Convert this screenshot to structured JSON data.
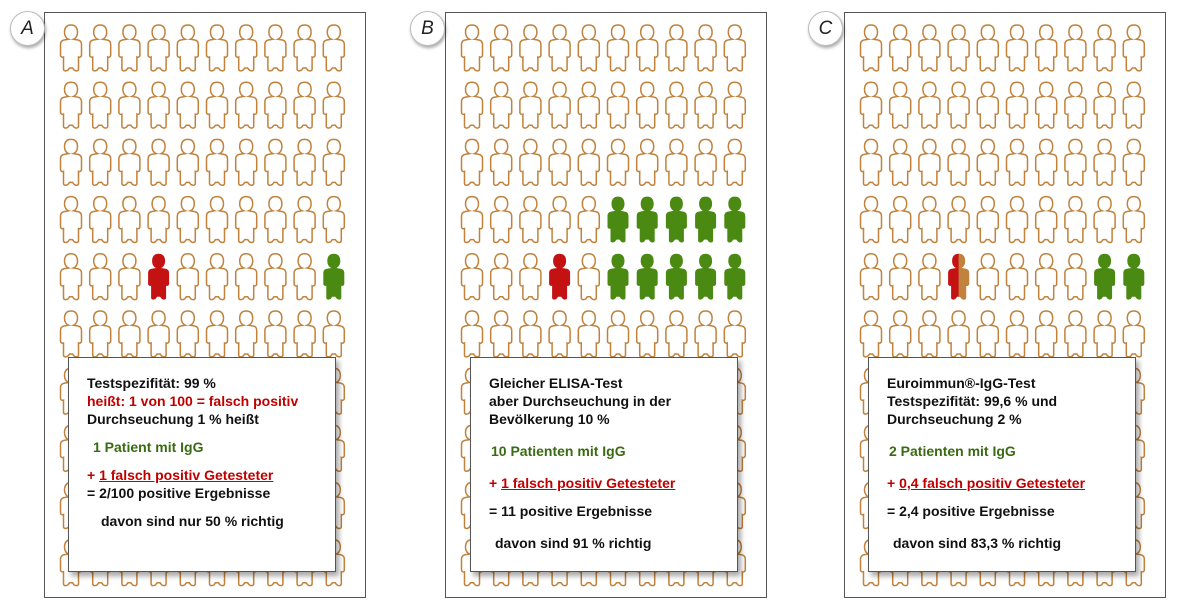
{
  "panels": [
    {
      "label": "A",
      "lines": [
        {
          "segments": [
            {
              "text": "Testspezifität: 99 %",
              "cls": ""
            }
          ],
          "cls": ""
        },
        {
          "segments": [
            {
              "text": "heißt: 1 von 100 = falsch positiv",
              "cls": "red"
            }
          ],
          "cls": ""
        },
        {
          "segments": [
            {
              "text": "Durchseuchung 1 % heißt",
              "cls": ""
            }
          ],
          "cls": ""
        },
        {
          "segments": [
            {
              "text": "1 Patient mit IgG",
              "cls": "green"
            }
          ],
          "cls": "gap",
          "indent": 6
        },
        {
          "segments": [
            {
              "text": "+ ",
              "cls": "red"
            },
            {
              "text": "1 falsch positiv Getesteter",
              "cls": "red ul"
            }
          ],
          "cls": "gap"
        },
        {
          "segments": [
            {
              "text": "= 2/100 positive Ergebnisse",
              "cls": ""
            }
          ],
          "cls": ""
        },
        {
          "segments": [
            {
              "text": "davon sind nur 50 % richtig",
              "cls": ""
            }
          ],
          "cls": "gap",
          "indent": 14
        }
      ],
      "highlights": [
        {
          "row": 4,
          "col": 3,
          "type": "red"
        },
        {
          "row": 4,
          "col": 9,
          "type": "green"
        }
      ]
    },
    {
      "label": "B",
      "lines": [
        {
          "segments": [
            {
              "text": "Gleicher ELISA-Test",
              "cls": ""
            }
          ],
          "cls": ""
        },
        {
          "segments": [
            {
              "text": "aber Durchseuchung in der",
              "cls": ""
            }
          ],
          "cls": ""
        },
        {
          "segments": [
            {
              "text": "Bevölkerung 10 %",
              "cls": ""
            }
          ],
          "cls": ""
        },
        {
          "segments": [
            {
              "text": "10 Patienten mit IgG",
              "cls": "green"
            }
          ],
          "cls": "gap2",
          "indent": 2
        },
        {
          "segments": [
            {
              "text": "+ ",
              "cls": "red"
            },
            {
              "text": "1 falsch positiv Getesteter",
              "cls": "red ul"
            }
          ],
          "cls": "gap2"
        },
        {
          "segments": [
            {
              "text": "= 11 positive Ergebnisse",
              "cls": ""
            }
          ],
          "cls": "gap"
        },
        {
          "segments": [
            {
              "text": "davon sind 91 % richtig",
              "cls": ""
            }
          ],
          "cls": "gap2",
          "indent": 6
        }
      ],
      "highlights": [
        {
          "row": 3,
          "col": 5,
          "type": "green"
        },
        {
          "row": 3,
          "col": 6,
          "type": "green"
        },
        {
          "row": 3,
          "col": 7,
          "type": "green"
        },
        {
          "row": 3,
          "col": 8,
          "type": "green"
        },
        {
          "row": 3,
          "col": 9,
          "type": "green"
        },
        {
          "row": 4,
          "col": 3,
          "type": "red"
        },
        {
          "row": 4,
          "col": 5,
          "type": "green"
        },
        {
          "row": 4,
          "col": 6,
          "type": "green"
        },
        {
          "row": 4,
          "col": 7,
          "type": "green"
        },
        {
          "row": 4,
          "col": 8,
          "type": "green"
        },
        {
          "row": 4,
          "col": 9,
          "type": "green"
        }
      ]
    },
    {
      "label": "C",
      "lines": [
        {
          "segments": [
            {
              "text": "Euroimmun®-IgG-Test",
              "cls": ""
            }
          ],
          "cls": ""
        },
        {
          "segments": [
            {
              "text": "Testspezifität: 99,6 % und",
              "cls": ""
            }
          ],
          "cls": ""
        },
        {
          "segments": [
            {
              "text": "Durchseuchung 2 %",
              "cls": ""
            }
          ],
          "cls": ""
        },
        {
          "segments": [
            {
              "text": "2 Patienten mit IgG",
              "cls": "green"
            }
          ],
          "cls": "gap2",
          "indent": 2
        },
        {
          "segments": [
            {
              "text": "+ ",
              "cls": "red"
            },
            {
              "text": "0,4 falsch positiv Getesteter",
              "cls": "red ul"
            }
          ],
          "cls": "gap2"
        },
        {
          "segments": [
            {
              "text": "= 2,4 positive Ergebnisse",
              "cls": ""
            }
          ],
          "cls": "gap"
        },
        {
          "segments": [
            {
              "text": "davon sind 83,3 % richtig",
              "cls": ""
            }
          ],
          "cls": "gap2",
          "indent": 6
        }
      ],
      "highlights": [
        {
          "row": 4,
          "col": 3,
          "type": "split"
        },
        {
          "row": 4,
          "col": 8,
          "type": "green"
        },
        {
          "row": 4,
          "col": 9,
          "type": "green"
        }
      ]
    }
  ],
  "grid": {
    "rows": 10,
    "cols": 10
  },
  "colors": {
    "outline": "#c0823c",
    "positive_true": "#4a8a12",
    "positive_false": "#c41212",
    "split_right": "#c0823c"
  }
}
